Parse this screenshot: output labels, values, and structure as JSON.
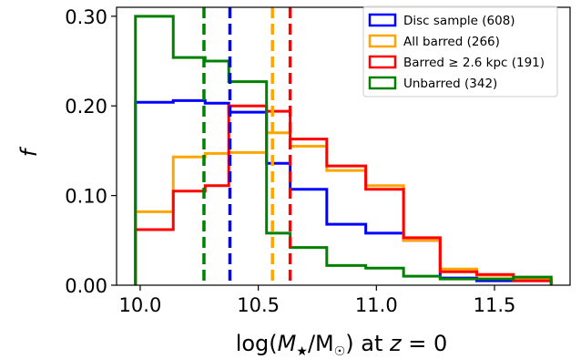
{
  "chart_data": {
    "type": "histogram",
    "xlabel": "log(M★/M☉) at z = 0",
    "ylabel": "f",
    "xlim": [
      9.9,
      11.82
    ],
    "ylim": [
      0.0,
      0.31
    ],
    "xticks": [
      10.0,
      10.5,
      11.0,
      11.5
    ],
    "xtick_labels": [
      "10.0",
      "10.5",
      "11.0",
      "11.5"
    ],
    "yticks": [
      0.0,
      0.1,
      0.2,
      0.3
    ],
    "ytick_labels": [
      "0.00",
      "0.10",
      "0.20",
      "0.30"
    ],
    "legend_placement": "top-right",
    "bin_edges": [
      9.98,
      10.14,
      10.275,
      10.375,
      10.535,
      10.635,
      10.79,
      10.955,
      11.115,
      11.27,
      11.425,
      11.58,
      11.74
    ],
    "series": [
      {
        "name": "Disc sample (608)",
        "color": "#0000ff",
        "values": [
          0.204,
          0.206,
          0.203,
          0.193,
          0.136,
          0.107,
          0.068,
          0.058,
          0.05,
          0.008,
          0.005,
          0.005
        ],
        "median": 10.38
      },
      {
        "name": "All barred (266)",
        "color": "#ffa500",
        "values": [
          0.082,
          0.143,
          0.147,
          0.148,
          0.17,
          0.155,
          0.128,
          0.111,
          0.05,
          0.018,
          0.011,
          0.007
        ],
        "median": 10.56
      },
      {
        "name": "Barred ≥ 2.6 kpc (191)",
        "color": "#ff0000",
        "values": [
          0.062,
          0.105,
          0.111,
          0.2,
          0.194,
          0.163,
          0.133,
          0.107,
          0.053,
          0.015,
          0.012,
          0.005
        ],
        "median": 10.635
      },
      {
        "name": "Unbarred (342)",
        "color": "#008000",
        "values": [
          0.3,
          0.254,
          0.25,
          0.227,
          0.058,
          0.042,
          0.022,
          0.019,
          0.01,
          0.007,
          0.007,
          0.009
        ],
        "median": 10.27
      }
    ]
  }
}
